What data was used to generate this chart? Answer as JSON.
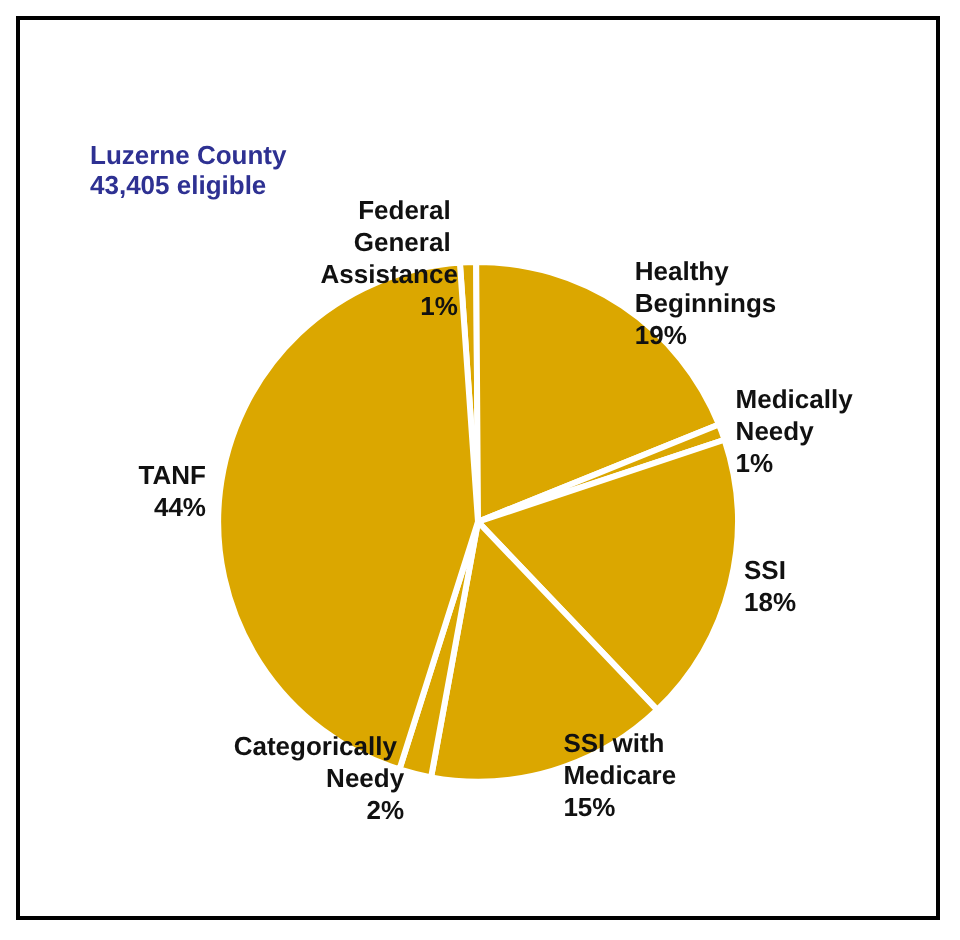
{
  "chart_data": {
    "type": "pie",
    "title": "Luzerne County",
    "subtitle": "43,405 eligible",
    "categories": [
      "Federal General Assistance",
      "Healthy Beginnings",
      "Medically Needy",
      "SSI",
      "SSI with Medicare",
      "Categorically Needy",
      "TANF"
    ],
    "values": [
      1,
      19,
      1,
      18,
      15,
      2,
      44
    ],
    "value_labels": [
      "1%",
      "19%",
      "1%",
      "18%",
      "15%",
      "2%",
      "44%"
    ],
    "colors": [
      "#dba700",
      "#dba700",
      "#dba700",
      "#dba700",
      "#dba700",
      "#dba700",
      "#dba700"
    ],
    "legend": false
  }
}
